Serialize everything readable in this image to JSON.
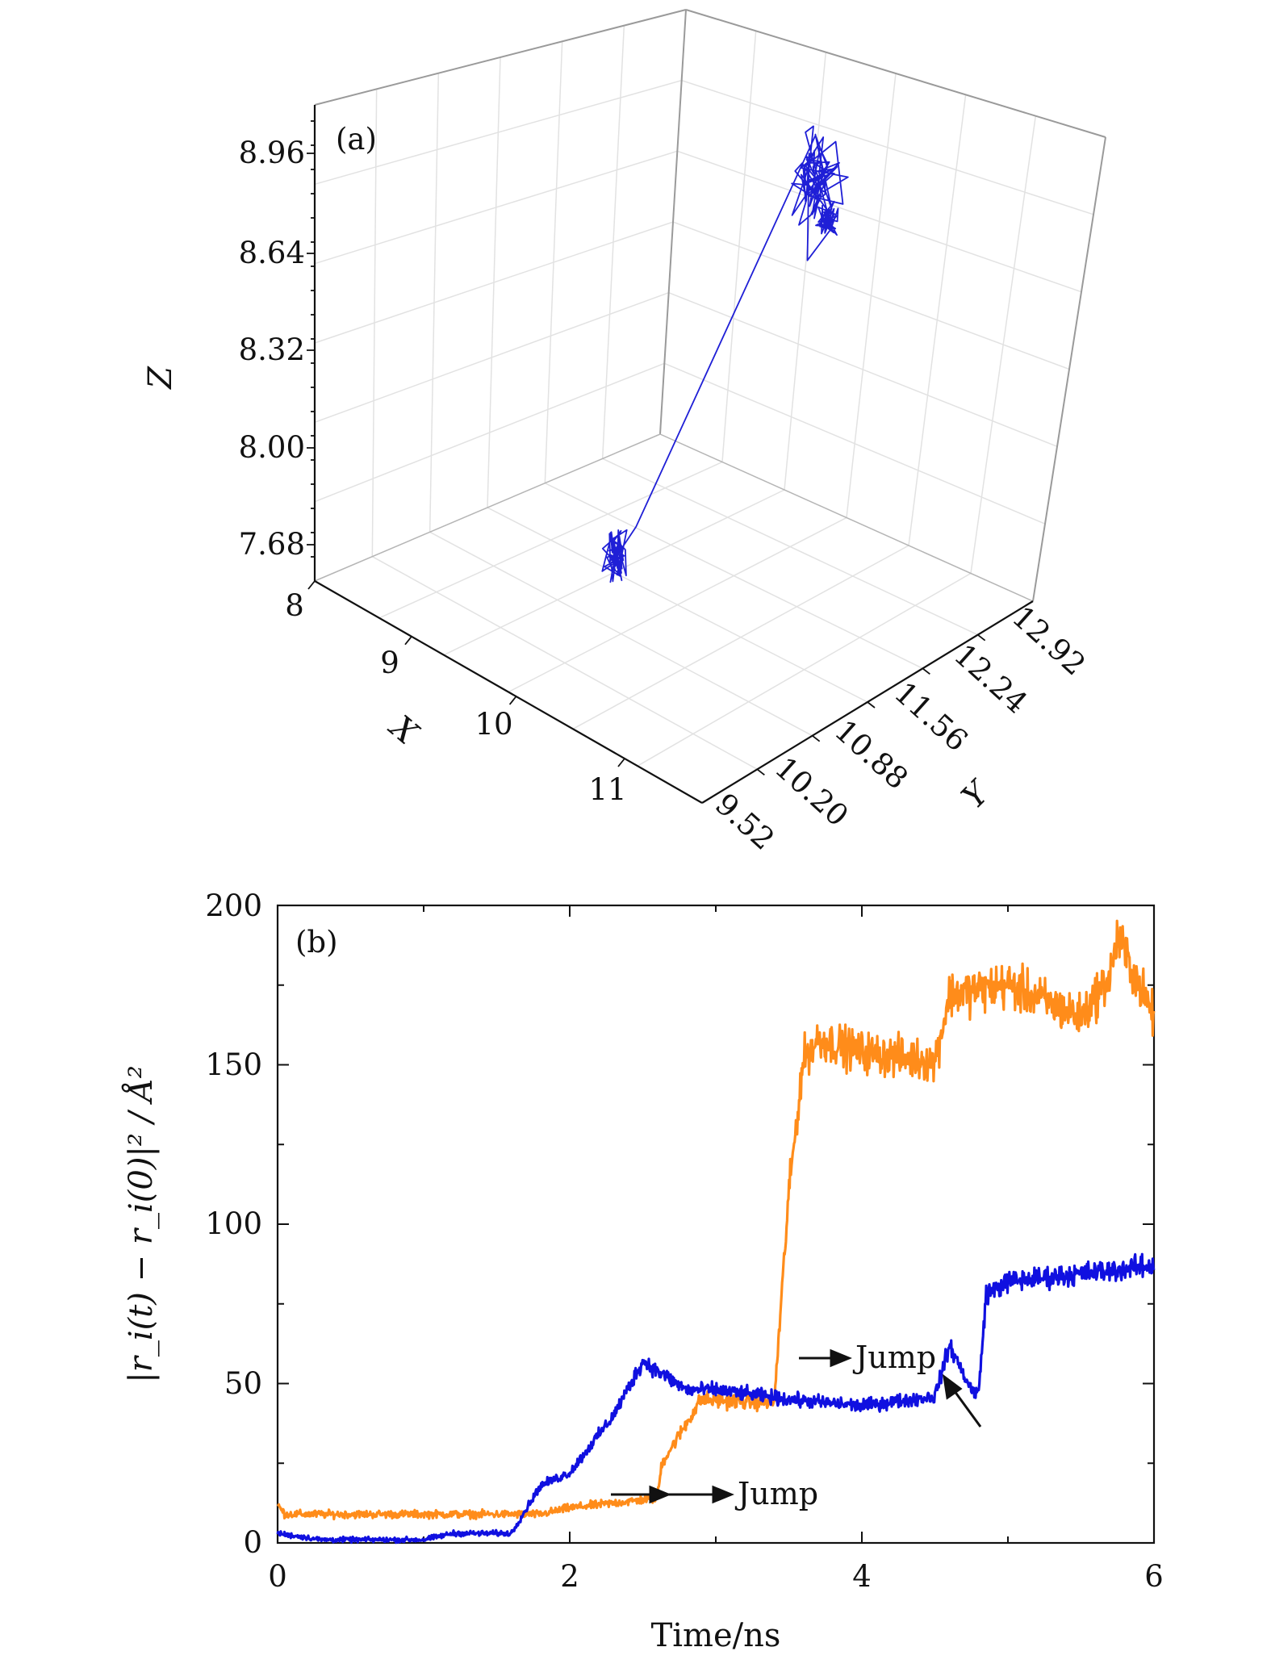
{
  "chart_data": [
    {
      "type": "line3d",
      "panel_label": "(a)",
      "xlabel": "X",
      "ylabel": "Y",
      "zlabel": "Z",
      "x_ticks": [
        "8",
        "9",
        "10",
        "11"
      ],
      "y_ticks": [
        "9.52",
        "10.20",
        "10.88",
        "11.56",
        "12.24",
        "12.92"
      ],
      "z_ticks": [
        "8.96",
        "8.64",
        "8.32",
        "8.00",
        "7.68"
      ],
      "xlim": [
        8,
        11.7
      ],
      "ylim": [
        9.52,
        13.3
      ],
      "zlim": [
        7.6,
        9.1
      ],
      "series": [
        {
          "name": "trajectory",
          "color": "#1f1fd6",
          "clusters": [
            {
              "x": 10.35,
              "y": 10.15,
              "z": 8.02
            },
            {
              "x": 10.25,
              "y": 12.55,
              "z": 8.78
            },
            {
              "x": 10.05,
              "y": 12.92,
              "z": 8.55
            }
          ]
        }
      ]
    },
    {
      "type": "line",
      "panel_label": "(b)",
      "xlabel": "Time/ns",
      "ylabel": "|r_i(t) − r_i(0)|² / Å²",
      "x_ticks": [
        "0",
        "2",
        "4",
        "6"
      ],
      "y_ticks": [
        "0",
        "50",
        "100",
        "150",
        "200"
      ],
      "xlim": [
        0,
        6
      ],
      "ylim": [
        0,
        200
      ],
      "series": [
        {
          "name": "orange",
          "color": "#ff8c1a",
          "x": [
            0,
            0.05,
            1.0,
            1.8,
            2.0,
            2.6,
            2.63,
            2.9,
            3.4,
            3.5,
            3.6,
            3.7,
            4.0,
            4.5,
            4.6,
            5.0,
            5.5,
            5.7,
            5.75,
            6.0
          ],
          "values": [
            12,
            9,
            9,
            9,
            11,
            14,
            25,
            45,
            44,
            110,
            152,
            158,
            154,
            151,
            172,
            175,
            165,
            178,
            190,
            165
          ]
        },
        {
          "name": "blue",
          "color": "#1010e0",
          "x": [
            0,
            0.3,
            1.0,
            1.2,
            1.6,
            1.8,
            2.0,
            2.3,
            2.5,
            2.8,
            3.0,
            3.5,
            4.0,
            4.5,
            4.6,
            4.75,
            4.8,
            4.85,
            5.0,
            6.0
          ],
          "values": [
            3,
            1,
            1,
            3,
            3,
            18,
            22,
            40,
            57,
            48,
            48,
            45,
            43,
            46,
            62,
            48,
            47,
            78,
            82,
            87
          ]
        }
      ],
      "annotations": [
        {
          "text": "Jump",
          "x": 3.55,
          "y": 91
        },
        {
          "text": "Jump",
          "x": 2.25,
          "y": 27
        }
      ]
    }
  ]
}
